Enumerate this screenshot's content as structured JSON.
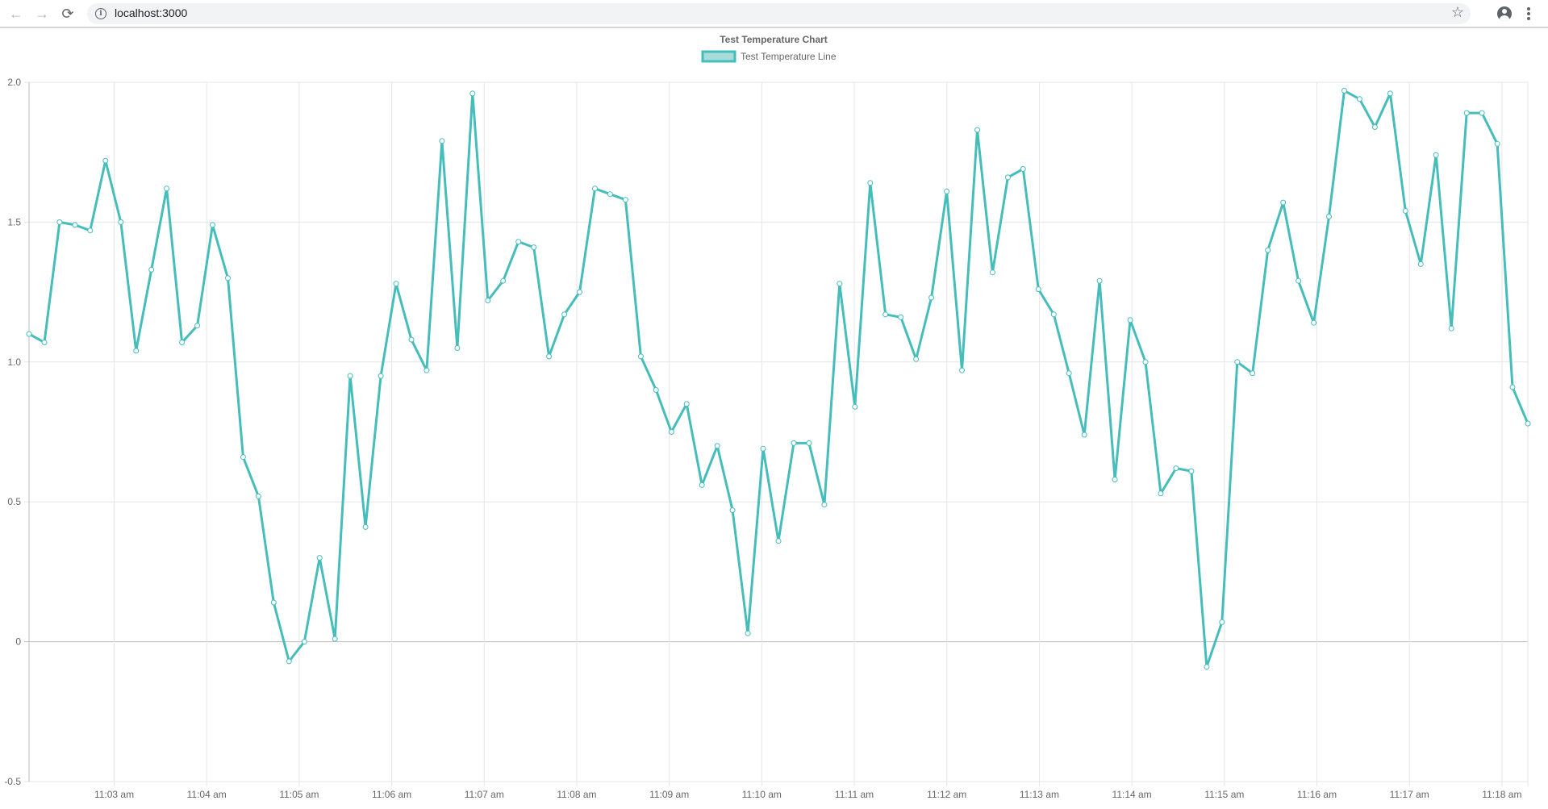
{
  "browser": {
    "url": "localhost:3000",
    "info_glyph": "i",
    "back_glyph": "←",
    "forward_glyph": "→",
    "reload_glyph": "⟳",
    "star_glyph": "☆"
  },
  "colors": {
    "line": "#45bdbb",
    "legend_fill": "#a8dcdb",
    "grid": "#e6e6e6",
    "zero_line": "#bdbdbd",
    "text": "#666666"
  },
  "chart_data": {
    "type": "line",
    "title": "Test Temperature Chart",
    "legend": [
      "Test Temperature Line"
    ],
    "legend_position": "top-center",
    "grid": true,
    "xlabel": "",
    "ylabel": "",
    "ylim": [
      -0.5,
      2.0
    ],
    "y_ticks": [
      "2.0",
      "1.5",
      "1.0",
      "0.5",
      "0",
      "-0.5"
    ],
    "y_tick_values": [
      2.0,
      1.5,
      1.0,
      0.5,
      0,
      -0.5
    ],
    "x_range_minutes": [
      2.08,
      18.28
    ],
    "x_tick_labels": [
      "11:03 am",
      "11:04 am",
      "11:05 am",
      "11:06 am",
      "11:07 am",
      "11:08 am",
      "11:09 am",
      "11:10 am",
      "11:11 am",
      "11:12 am",
      "11:13 am",
      "11:14 am",
      "11:15 am",
      "11:16 am",
      "11:17 am",
      "11:18 am"
    ],
    "x_tick_minutes": [
      3,
      4,
      5,
      6,
      7,
      8,
      9,
      10,
      11,
      12,
      13,
      14,
      15,
      16,
      17,
      18
    ],
    "series": [
      {
        "name": "Test Temperature Line",
        "values": [
          1.1,
          1.07,
          1.5,
          1.49,
          1.47,
          1.72,
          1.5,
          1.04,
          1.33,
          1.62,
          1.07,
          1.13,
          1.49,
          1.3,
          0.66,
          0.52,
          0.14,
          -0.07,
          0.0,
          0.3,
          0.01,
          0.95,
          0.41,
          0.95,
          1.28,
          1.08,
          0.97,
          1.79,
          1.05,
          1.96,
          1.22,
          1.29,
          1.43,
          1.41,
          1.02,
          1.17,
          1.25,
          1.62,
          1.6,
          1.58,
          1.02,
          0.9,
          0.75,
          0.85,
          0.56,
          0.7,
          0.47,
          0.03,
          0.69,
          0.36,
          0.71,
          0.71,
          0.49,
          1.28,
          0.84,
          1.64,
          1.17,
          1.16,
          1.01,
          1.23,
          1.61,
          0.97,
          1.83,
          1.32,
          1.66,
          1.69,
          1.26,
          1.17,
          0.96,
          0.74,
          1.29,
          0.58,
          1.15,
          1.0,
          0.53,
          0.62,
          0.61,
          -0.09,
          0.07,
          1.0,
          0.96,
          1.4,
          1.57,
          1.29,
          1.14,
          1.52,
          1.97,
          1.94,
          1.84,
          1.96,
          1.54,
          1.35,
          1.74,
          1.12,
          1.89,
          1.89,
          1.78,
          0.91,
          0.78
        ]
      }
    ]
  }
}
